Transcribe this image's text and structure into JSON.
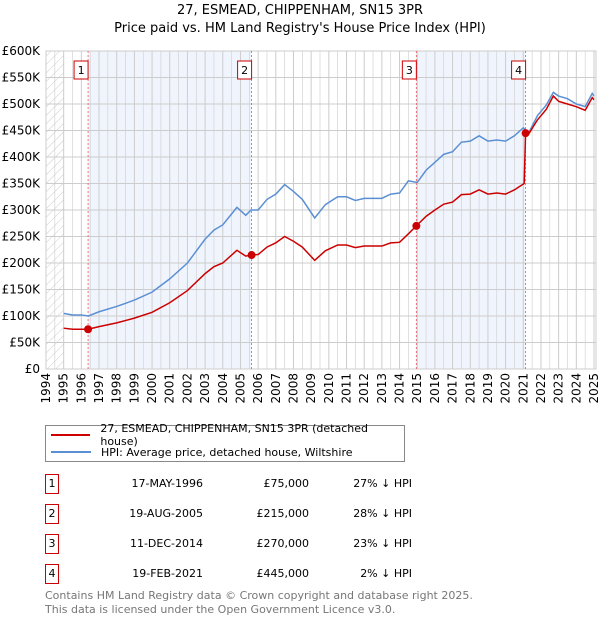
{
  "chart_data": {
    "type": "line",
    "title": "27, ESMEAD, CHIPPENHAM, SN15 3PR",
    "subtitle": "Price paid vs. HM Land Registry's House Price Index (HPI)",
    "xlim": [
      1994,
      2025
    ],
    "ylim": [
      0,
      600000
    ],
    "yticks": [
      {
        "v": 0,
        "l": "£0"
      },
      {
        "v": 50000,
        "l": "£50K"
      },
      {
        "v": 100000,
        "l": "£100K"
      },
      {
        "v": 150000,
        "l": "£150K"
      },
      {
        "v": 200000,
        "l": "£200K"
      },
      {
        "v": 250000,
        "l": "£250K"
      },
      {
        "v": 300000,
        "l": "£300K"
      },
      {
        "v": 350000,
        "l": "£350K"
      },
      {
        "v": 400000,
        "l": "£400K"
      },
      {
        "v": 450000,
        "l": "£450K"
      },
      {
        "v": 500000,
        "l": "£500K"
      },
      {
        "v": 550000,
        "l": "£550K"
      },
      {
        "v": 600000,
        "l": "£600K"
      }
    ],
    "xticks": [
      "1994",
      "1995",
      "1996",
      "1997",
      "1998",
      "1999",
      "2000",
      "2001",
      "2002",
      "2003",
      "2004",
      "2005",
      "2006",
      "2007",
      "2008",
      "2009",
      "2010",
      "2011",
      "2012",
      "2013",
      "2014",
      "2015",
      "2016",
      "2017",
      "2018",
      "2019",
      "2020",
      "2021",
      "2022",
      "2023",
      "2024",
      "2025"
    ],
    "grid": true,
    "series": [
      {
        "name": "27, ESMEAD, CHIPPENHAM, SN15 3PR (detached house)",
        "color": "#cc0000",
        "points": [
          [
            1995,
            77
          ],
          [
            1995.5,
            75
          ],
          [
            1996,
            75
          ],
          [
            1996.38,
            75
          ],
          [
            1997,
            80
          ],
          [
            1998,
            87
          ],
          [
            1999,
            96
          ],
          [
            2000,
            107
          ],
          [
            2001,
            125
          ],
          [
            2002,
            148
          ],
          [
            2003,
            180
          ],
          [
            2003.5,
            193
          ],
          [
            2004,
            200
          ],
          [
            2004.8,
            224
          ],
          [
            2005.3,
            213
          ],
          [
            2005.63,
            215
          ],
          [
            2006,
            216
          ],
          [
            2006.5,
            230
          ],
          [
            2007,
            238
          ],
          [
            2007.5,
            250
          ],
          [
            2008,
            241
          ],
          [
            2008.5,
            230
          ],
          [
            2009.2,
            205
          ],
          [
            2009.8,
            223
          ],
          [
            2010.5,
            234
          ],
          [
            2011,
            234
          ],
          [
            2011.5,
            229
          ],
          [
            2012,
            232
          ],
          [
            2013,
            232
          ],
          [
            2013.5,
            238
          ],
          [
            2014,
            239
          ],
          [
            2014.5,
            255
          ],
          [
            2014.95,
            270
          ],
          [
            2015.5,
            288
          ],
          [
            2016,
            300
          ],
          [
            2016.5,
            311
          ],
          [
            2017,
            315
          ],
          [
            2017.5,
            329
          ],
          [
            2018,
            330
          ],
          [
            2018.5,
            338
          ],
          [
            2019,
            330
          ],
          [
            2019.5,
            332
          ],
          [
            2020,
            330
          ],
          [
            2020.5,
            338
          ],
          [
            2021.05,
            350
          ],
          [
            2021.13,
            445
          ],
          [
            2021.3,
            443
          ],
          [
            2021.8,
            470
          ],
          [
            2022.3,
            490
          ],
          [
            2022.7,
            515
          ],
          [
            2023,
            505
          ],
          [
            2023.5,
            500
          ],
          [
            2024,
            495
          ],
          [
            2024.5,
            488
          ],
          [
            2024.9,
            512
          ],
          [
            2025,
            508
          ]
        ]
      },
      {
        "name": "HPI: Average price, detached house, Wiltshire",
        "color": "#5b8fd4",
        "points": [
          [
            1995,
            105
          ],
          [
            1995.5,
            102
          ],
          [
            1996,
            102
          ],
          [
            1996.4,
            100
          ],
          [
            1997,
            108
          ],
          [
            1998,
            118
          ],
          [
            1999,
            130
          ],
          [
            2000,
            145
          ],
          [
            2001,
            170
          ],
          [
            2002,
            200
          ],
          [
            2003,
            245
          ],
          [
            2003.5,
            262
          ],
          [
            2004,
            272
          ],
          [
            2004.8,
            305
          ],
          [
            2005.3,
            290
          ],
          [
            2005.6,
            300
          ],
          [
            2006,
            300
          ],
          [
            2006.5,
            320
          ],
          [
            2007,
            330
          ],
          [
            2007.5,
            348
          ],
          [
            2008,
            335
          ],
          [
            2008.5,
            320
          ],
          [
            2009.2,
            285
          ],
          [
            2009.8,
            310
          ],
          [
            2010.5,
            325
          ],
          [
            2011,
            325
          ],
          [
            2011.5,
            318
          ],
          [
            2012,
            322
          ],
          [
            2013,
            322
          ],
          [
            2013.5,
            330
          ],
          [
            2014,
            332
          ],
          [
            2014.5,
            355
          ],
          [
            2015,
            352
          ],
          [
            2015.5,
            375
          ],
          [
            2016,
            390
          ],
          [
            2016.5,
            405
          ],
          [
            2017,
            410
          ],
          [
            2017.5,
            428
          ],
          [
            2018,
            430
          ],
          [
            2018.5,
            440
          ],
          [
            2019,
            430
          ],
          [
            2019.5,
            432
          ],
          [
            2020,
            430
          ],
          [
            2020.5,
            440
          ],
          [
            2021,
            455
          ],
          [
            2021.3,
            445
          ],
          [
            2021.8,
            478
          ],
          [
            2022.3,
            498
          ],
          [
            2022.7,
            522
          ],
          [
            2023,
            515
          ],
          [
            2023.5,
            510
          ],
          [
            2024,
            500
          ],
          [
            2024.5,
            495
          ],
          [
            2024.9,
            520
          ],
          [
            2025,
            515
          ]
        ]
      }
    ],
    "sales": [
      {
        "n": "1",
        "x": 1996.38,
        "date": "17-MAY-1996",
        "price": 75000,
        "price_label": "£75,000",
        "hpi": "27% ↓ HPI"
      },
      {
        "n": "2",
        "x": 2005.63,
        "date": "19-AUG-2005",
        "price": 215000,
        "price_label": "£215,000",
        "hpi": "28% ↓ HPI"
      },
      {
        "n": "3",
        "x": 2014.95,
        "date": "11-DEC-2014",
        "price": 270000,
        "price_label": "£270,000",
        "hpi": "23% ↓ HPI"
      },
      {
        "n": "4",
        "x": 2021.13,
        "date": "19-FEB-2021",
        "price": 445000,
        "price_label": "£445,000",
        "hpi": "2% ↓ HPI"
      }
    ]
  },
  "legend": {
    "red": "27, ESMEAD, CHIPPENHAM, SN15 3PR (detached house)",
    "blue": "HPI: Average price, detached house, Wiltshire"
  },
  "footer": {
    "line1": "Contains HM Land Registry data © Crown copyright and database right 2025.",
    "line2": "This data is licensed under the Open Government Licence v3.0."
  }
}
